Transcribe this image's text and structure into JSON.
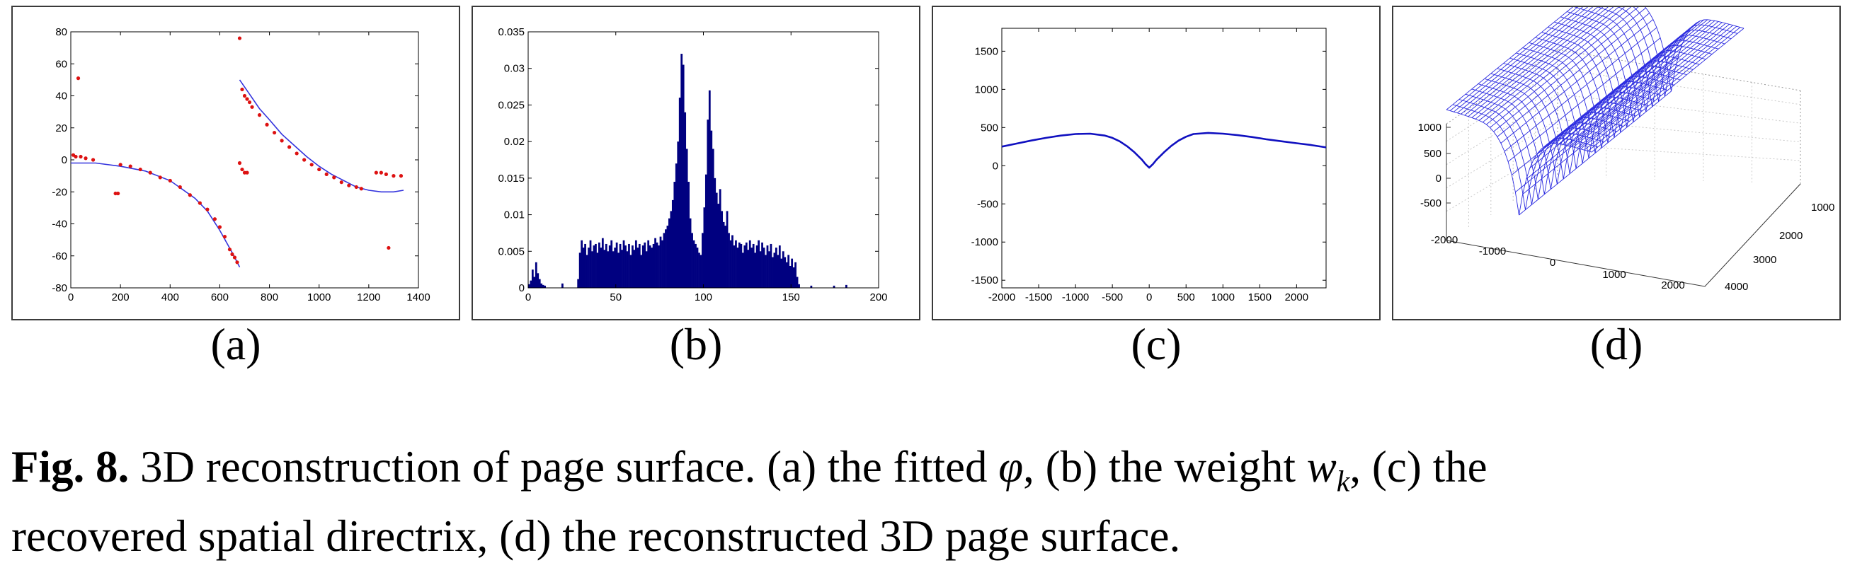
{
  "figure": {
    "panel_labels": [
      "(a)",
      "(b)",
      "(c)",
      "(d)"
    ],
    "caption": {
      "prefix": "Fig. 8.",
      "line1_a": " 3D reconstruction of page surface. (a) the fitted ",
      "phi": "φ",
      "line1_b": ", (b) the weight ",
      "w": "w",
      "k": "k",
      "line1_c": ", (c) the",
      "line2": "recovered spatial directrix, (d) the reconstructed 3D page surface."
    }
  },
  "chart_data": [
    {
      "type": "scatter",
      "panel": "(a)",
      "xlim": [
        0,
        1400
      ],
      "ylim": [
        -80,
        80
      ],
      "xticks": [
        "0",
        "200",
        "400",
        "600",
        "800",
        "1000",
        "1200",
        "1400"
      ],
      "yticks": [
        "80",
        "60",
        "40",
        "20",
        "0",
        "-20",
        "-40",
        "-60",
        "-80"
      ],
      "colors": {
        "points": "#dd1111",
        "fit": "#3333dd"
      },
      "fit_left": {
        "x": [
          0,
          100,
          200,
          300,
          400,
          500,
          550,
          600,
          650,
          680
        ],
        "y": [
          -2,
          -2,
          -4,
          -7,
          -13,
          -24,
          -32,
          -44,
          -58,
          -67
        ]
      },
      "fit_right": {
        "x": [
          680,
          720,
          760,
          800,
          850,
          900,
          950,
          1000,
          1050,
          1100,
          1150,
          1200,
          1250,
          1300,
          1340
        ],
        "y": [
          50,
          41,
          32,
          25,
          16,
          9,
          2,
          -4,
          -9,
          -13,
          -17,
          -19,
          -20,
          -20,
          -19
        ]
      },
      "points_left": {
        "x": [
          10,
          20,
          40,
          60,
          90,
          180,
          190,
          200,
          240,
          280,
          320,
          360,
          400,
          440,
          480,
          520,
          550,
          580,
          600,
          620,
          640,
          650,
          660,
          670
        ],
        "y": [
          3,
          2,
          2,
          1,
          0,
          -21,
          -21,
          -3,
          -4,
          -6,
          -8,
          -11,
          -13,
          -17,
          -22,
          -27,
          -31,
          -37,
          -42,
          -48,
          -56,
          -59,
          -61,
          -64
        ]
      },
      "points_right": {
        "x": [
          690,
          700,
          710,
          720,
          730,
          760,
          790,
          820,
          850,
          880,
          910,
          940,
          970,
          1000,
          1030,
          1060,
          1090,
          1120,
          1150,
          1170,
          1230,
          1250,
          1270,
          1300,
          1330
        ],
        "y": [
          44,
          40,
          38,
          36,
          33,
          28,
          22,
          17,
          12,
          8,
          4,
          0,
          -3,
          -6,
          -9,
          -11,
          -14,
          -16,
          -17,
          -18,
          -8,
          -8,
          -9,
          -10,
          -10
        ]
      },
      "outliers": {
        "x": [
          30,
          680,
          680,
          690,
          700,
          710,
          1280
        ],
        "y": [
          51,
          76,
          -2,
          -6,
          -8,
          -8,
          -55
        ]
      }
    },
    {
      "type": "bar",
      "panel": "(b)",
      "xlim": [
        0,
        200
      ],
      "ylim": [
        0,
        0.035
      ],
      "xticks": [
        "0",
        "50",
        "100",
        "150",
        "200"
      ],
      "yticks": [
        "0.035",
        "0.03",
        "0.025",
        "0.02",
        "0.015",
        "0.01",
        "0.005",
        "0"
      ],
      "color": "#000080",
      "x_start": 0,
      "values": [
        0.0005,
        0.001,
        0.0025,
        0.0015,
        0.0035,
        0.002,
        0.0012,
        0.0006,
        0.0004,
        0.0003,
        0,
        0,
        0,
        0,
        0,
        0,
        0,
        0,
        0,
        0.0006,
        0,
        0,
        0,
        0,
        0,
        0,
        0,
        0,
        0.0012,
        0.0048,
        0.0065,
        0.0055,
        0.006,
        0.0045,
        0.0055,
        0.0065,
        0.005,
        0.0058,
        0.006,
        0.0048,
        0.0062,
        0.0055,
        0.0068,
        0.0052,
        0.006,
        0.005,
        0.0058,
        0.0065,
        0.005,
        0.0055,
        0.0062,
        0.0048,
        0.006,
        0.0052,
        0.0065,
        0.0058,
        0.005,
        0.006,
        0.0045,
        0.0058,
        0.0052,
        0.0065,
        0.0055,
        0.006,
        0.0045,
        0.0058,
        0.0062,
        0.005,
        0.0065,
        0.0058,
        0.0055,
        0.006,
        0.0068,
        0.0062,
        0.0058,
        0.007,
        0.0065,
        0.0075,
        0.008,
        0.0085,
        0.0095,
        0.0105,
        0.012,
        0.0145,
        0.017,
        0.02,
        0.026,
        0.032,
        0.0305,
        0.024,
        0.019,
        0.0145,
        0.0095,
        0.0075,
        0.0065,
        0.006,
        0.0055,
        0.0048,
        0.0045,
        0.0075,
        0.011,
        0.0155,
        0.023,
        0.027,
        0.0215,
        0.019,
        0.015,
        0.013,
        0.0115,
        0.0135,
        0.0105,
        0.009,
        0.0085,
        0.0105,
        0.0075,
        0.0065,
        0.0072,
        0.0058,
        0.0065,
        0.0055,
        0.0062,
        0.006,
        0.0048,
        0.0058,
        0.0062,
        0.0052,
        0.0065,
        0.0055,
        0.006,
        0.0048,
        0.0058,
        0.0065,
        0.005,
        0.0062,
        0.0055,
        0.0045,
        0.0058,
        0.005,
        0.006,
        0.0042,
        0.0048,
        0.0055,
        0.0045,
        0.0058,
        0.004,
        0.005,
        0.0042,
        0.0035,
        0.0045,
        0.003,
        0.004,
        0.0028,
        0.0035,
        0.0015,
        0.0005,
        0,
        0,
        0,
        0,
        0,
        0,
        0.0003,
        0,
        0,
        0,
        0,
        0,
        0,
        0,
        0,
        0,
        0,
        0,
        0,
        0.0003,
        0,
        0,
        0,
        0,
        0,
        0,
        0.0004,
        0,
        0,
        0
      ]
    },
    {
      "type": "line",
      "panel": "(c)",
      "xlim": [
        -2000,
        2400
      ],
      "ylim": [
        -1600,
        1800
      ],
      "xticks": [
        "-2000",
        "-1500",
        "-1000",
        "-500",
        "0",
        "500",
        "1000",
        "1500",
        "2000"
      ],
      "yticks": [
        "1500",
        "1000",
        "500",
        "0",
        "-500",
        "-1000",
        "-1500"
      ],
      "color": "#1010c0",
      "x": [
        -2000,
        -1800,
        -1600,
        -1400,
        -1200,
        -1000,
        -800,
        -600,
        -500,
        -400,
        -300,
        -200,
        -100,
        -50,
        0,
        50,
        100,
        200,
        300,
        400,
        500,
        600,
        800,
        1000,
        1200,
        1400,
        1600,
        1800,
        2000,
        2200,
        2400
      ],
      "y": [
        250,
        290,
        330,
        365,
        395,
        415,
        420,
        395,
        365,
        320,
        255,
        175,
        80,
        20,
        -25,
        20,
        80,
        175,
        260,
        330,
        380,
        415,
        430,
        420,
        400,
        375,
        345,
        320,
        295,
        270,
        240
      ]
    },
    {
      "type": "surface",
      "panel": "(d)",
      "color": "#2a2ae0",
      "zticks": [
        "1000",
        "500",
        "0",
        "-500"
      ],
      "xticks": [
        "-2000",
        "-1000",
        "0",
        "1000",
        "2000"
      ],
      "yticks": [
        "1000",
        "2000",
        "3000",
        "4000"
      ]
    }
  ]
}
